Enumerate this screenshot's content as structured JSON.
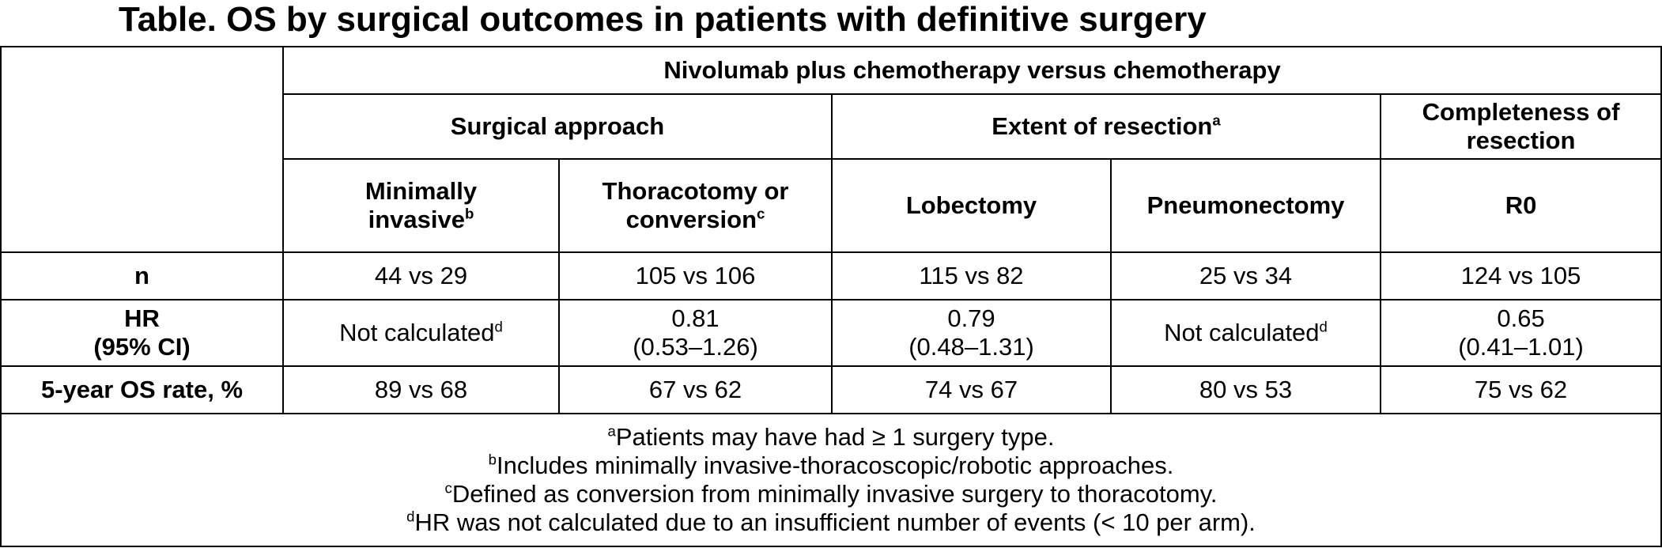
{
  "title": "Table. OS by surgical outcomes in patients with definitive surgery",
  "table": {
    "super_header": "Nivolumab plus chemotherapy versus chemotherapy",
    "groups": [
      {
        "label": "Surgical approach",
        "sup": ""
      },
      {
        "label": "Extent of resection",
        "sup": "a"
      },
      {
        "label": "Completeness of resection",
        "sup": ""
      }
    ],
    "columns": [
      {
        "label": "Minimally invasive",
        "sup": "b"
      },
      {
        "label": "Thoracotomy or conversion",
        "sup": "c"
      },
      {
        "label": "Lobectomy",
        "sup": ""
      },
      {
        "label": "Pneumonectomy",
        "sup": ""
      },
      {
        "label": "R0",
        "sup": ""
      }
    ],
    "rows": [
      {
        "label_line1": "n",
        "label_line2": "",
        "cells": [
          {
            "line1": "44 vs 29",
            "line2": "",
            "sup": ""
          },
          {
            "line1": "105 vs 106",
            "line2": "",
            "sup": ""
          },
          {
            "line1": "115 vs 82",
            "line2": "",
            "sup": ""
          },
          {
            "line1": "25 vs 34",
            "line2": "",
            "sup": ""
          },
          {
            "line1": "124 vs 105",
            "line2": "",
            "sup": ""
          }
        ]
      },
      {
        "label_line1": "HR",
        "label_line2": "(95% CI)",
        "cells": [
          {
            "line1": "Not calculated",
            "line2": "",
            "sup": "d"
          },
          {
            "line1": "0.81",
            "line2": "(0.53–1.26)",
            "sup": ""
          },
          {
            "line1": "0.79",
            "line2": "(0.48–1.31)",
            "sup": ""
          },
          {
            "line1": "Not calculated",
            "line2": "",
            "sup": "d"
          },
          {
            "line1": "0.65",
            "line2": "(0.41–1.01)",
            "sup": ""
          }
        ]
      },
      {
        "label_line1": "5-year OS rate, %",
        "label_line2": "",
        "cells": [
          {
            "line1": "89 vs 68",
            "line2": "",
            "sup": ""
          },
          {
            "line1": "67 vs 62",
            "line2": "",
            "sup": ""
          },
          {
            "line1": "74 vs 67",
            "line2": "",
            "sup": ""
          },
          {
            "line1": "80 vs 53",
            "line2": "",
            "sup": ""
          },
          {
            "line1": "75 vs 62",
            "line2": "",
            "sup": ""
          }
        ]
      }
    ]
  },
  "footnotes": [
    {
      "mark": "a",
      "text": "Patients may have had ≥ 1 surgery type."
    },
    {
      "mark": "b",
      "text": "Includes minimally invasive-thoracoscopic/robotic approaches."
    },
    {
      "mark": "c",
      "text": "Defined as conversion from minimally invasive surgery to thoracotomy."
    },
    {
      "mark": "d",
      "text": "HR was not calculated due to an insufficient number of events (< 10 per arm)."
    }
  ]
}
